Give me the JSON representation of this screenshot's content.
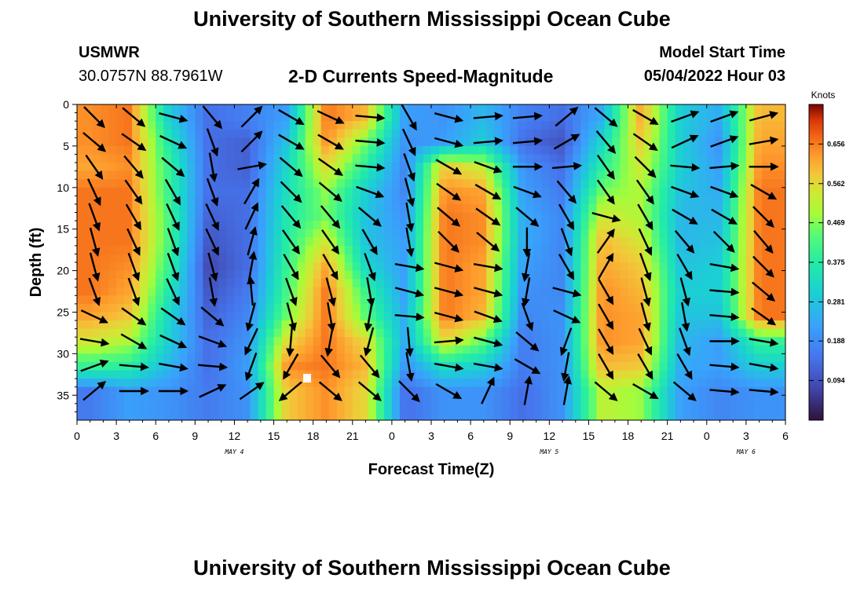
{
  "header": {
    "main_title": "University of Southern Mississippi Ocean Cube",
    "station_code": "USMWR",
    "station_coords": "30.0757N  88.7961W",
    "plot_title": "2-D Currents Speed-Magnitude",
    "model_start_label": "Model Start Time",
    "model_start_value": "05/04/2022 Hour 03",
    "repeat_title": "University of Southern Mississippi Ocean Cube"
  },
  "chart_data": {
    "type": "heatmap",
    "title": "2-D Currents Speed-Magnitude",
    "xlabel": "Forecast Time(Z)",
    "ylabel": "Depth (ft)",
    "x_range_hours_from_may4_00z": [
      0,
      54
    ],
    "y_range_ft": [
      0,
      38
    ],
    "y_inverted": true,
    "x_ticks": [
      "0",
      "3",
      "6",
      "9",
      "12",
      "15",
      "18",
      "21",
      "0",
      "3",
      "6",
      "9",
      "12",
      "15",
      "18",
      "21",
      "0",
      "3",
      "6"
    ],
    "y_ticks": [
      "0",
      "5",
      "10",
      "15",
      "20",
      "25",
      "30",
      "35"
    ],
    "day_labels": [
      {
        "text": "MAY 4",
        "hour": 12
      },
      {
        "text": "MAY 5",
        "hour": 36
      },
      {
        "text": "MAY 6",
        "hour": 51
      }
    ],
    "colorbar": {
      "title": "Knots",
      "range": [
        0.0,
        0.75
      ],
      "ticks": [
        "0.094",
        "0.188",
        "0.281",
        "0.375",
        "0.469",
        "0.562",
        "0.656"
      ]
    },
    "hour_columns": [
      1,
      4,
      7,
      10,
      13,
      16,
      19,
      22,
      25,
      28,
      31,
      34,
      37,
      40,
      43,
      46,
      49,
      52
    ],
    "depth_rows": [
      1.5,
      4.5,
      7.5,
      10.5,
      13.5,
      16.5,
      19.5,
      22.5,
      25.5,
      28.5,
      31.5,
      34.5
    ],
    "speed_knots": [
      [
        0.64,
        0.66,
        0.3,
        0.14,
        0.17,
        0.22,
        0.66,
        0.6,
        0.22,
        0.2,
        0.26,
        0.17,
        0.14,
        0.24,
        0.62,
        0.3,
        0.24,
        0.6
      ],
      [
        0.64,
        0.66,
        0.36,
        0.14,
        0.12,
        0.28,
        0.64,
        0.46,
        0.2,
        0.22,
        0.3,
        0.14,
        0.1,
        0.32,
        0.58,
        0.3,
        0.2,
        0.62
      ],
      [
        0.62,
        0.64,
        0.4,
        0.14,
        0.12,
        0.32,
        0.56,
        0.38,
        0.18,
        0.58,
        0.52,
        0.2,
        0.14,
        0.38,
        0.54,
        0.3,
        0.22,
        0.64
      ],
      [
        0.66,
        0.66,
        0.4,
        0.14,
        0.14,
        0.34,
        0.48,
        0.3,
        0.18,
        0.64,
        0.62,
        0.22,
        0.16,
        0.46,
        0.5,
        0.28,
        0.24,
        0.66
      ],
      [
        0.66,
        0.66,
        0.42,
        0.12,
        0.14,
        0.36,
        0.46,
        0.28,
        0.2,
        0.66,
        0.64,
        0.24,
        0.18,
        0.54,
        0.5,
        0.26,
        0.26,
        0.66
      ],
      [
        0.66,
        0.66,
        0.42,
        0.1,
        0.14,
        0.38,
        0.54,
        0.28,
        0.22,
        0.66,
        0.64,
        0.24,
        0.18,
        0.6,
        0.54,
        0.26,
        0.28,
        0.66
      ],
      [
        0.66,
        0.64,
        0.4,
        0.08,
        0.14,
        0.4,
        0.62,
        0.32,
        0.22,
        0.66,
        0.62,
        0.22,
        0.18,
        0.62,
        0.58,
        0.28,
        0.3,
        0.66
      ],
      [
        0.66,
        0.62,
        0.36,
        0.1,
        0.16,
        0.42,
        0.66,
        0.4,
        0.22,
        0.66,
        0.62,
        0.2,
        0.18,
        0.64,
        0.6,
        0.3,
        0.3,
        0.66
      ],
      [
        0.62,
        0.58,
        0.32,
        0.12,
        0.18,
        0.46,
        0.66,
        0.44,
        0.24,
        0.66,
        0.6,
        0.18,
        0.2,
        0.64,
        0.62,
        0.28,
        0.28,
        0.66
      ],
      [
        0.54,
        0.5,
        0.3,
        0.14,
        0.2,
        0.56,
        0.66,
        0.56,
        0.24,
        0.56,
        0.44,
        0.16,
        0.2,
        0.64,
        0.62,
        0.26,
        0.22,
        0.4
      ],
      [
        0.4,
        0.38,
        0.26,
        0.14,
        0.22,
        0.64,
        0.66,
        0.6,
        0.2,
        0.34,
        0.3,
        0.16,
        0.2,
        0.6,
        0.58,
        0.24,
        0.22,
        0.3
      ],
      [
        0.16,
        0.22,
        0.2,
        0.16,
        0.2,
        0.58,
        0.64,
        0.56,
        0.14,
        0.2,
        0.2,
        0.14,
        0.2,
        0.52,
        0.48,
        0.22,
        0.18,
        0.2
      ]
    ],
    "direction_deg_from_east": [
      [
        -45,
        -40,
        -15,
        -50,
        45,
        -30,
        -25,
        -5,
        -60,
        -15,
        5,
        5,
        40,
        -40,
        -30,
        20,
        20,
        15
      ],
      [
        -40,
        -35,
        -25,
        -70,
        45,
        -30,
        -30,
        -5,
        -65,
        -15,
        5,
        5,
        30,
        -50,
        -35,
        25,
        20,
        10
      ],
      [
        -55,
        -50,
        -40,
        -80,
        10,
        -40,
        -35,
        -5,
        -70,
        -30,
        -20,
        0,
        5,
        -55,
        -45,
        -5,
        5,
        0
      ],
      [
        -65,
        -55,
        -60,
        -70,
        60,
        -45,
        -40,
        -20,
        -75,
        -35,
        -30,
        -20,
        -50,
        -55,
        -55,
        -20,
        -20,
        -30
      ],
      [
        -70,
        -60,
        -65,
        -65,
        65,
        -50,
        -50,
        -40,
        -80,
        -40,
        -35,
        -40,
        -60,
        -15,
        -60,
        -30,
        -30,
        -45
      ],
      [
        -75,
        -65,
        -70,
        -65,
        75,
        -55,
        -55,
        -60,
        -80,
        -45,
        -40,
        -90,
        -70,
        55,
        -65,
        -50,
        -45,
        -50
      ],
      [
        -75,
        -70,
        -70,
        -75,
        80,
        -60,
        -60,
        -70,
        -10,
        -15,
        -10,
        -100,
        -60,
        60,
        -70,
        -60,
        -10,
        -45
      ],
      [
        -70,
        -70,
        -65,
        -80,
        95,
        -70,
        -75,
        -80,
        -15,
        -15,
        -15,
        -100,
        -15,
        -60,
        -75,
        -75,
        -5,
        -40
      ],
      [
        -25,
        -35,
        -35,
        -40,
        -105,
        -75,
        -80,
        -100,
        -5,
        -15,
        -20,
        -70,
        -25,
        -60,
        -75,
        -80,
        -5,
        -35
      ],
      [
        -10,
        -30,
        -25,
        -20,
        -115,
        -95,
        -100,
        -105,
        -85,
        5,
        -15,
        -40,
        -110,
        -60,
        -65,
        -70,
        0,
        -10
      ],
      [
        20,
        -5,
        -10,
        -5,
        -110,
        -120,
        -50,
        -50,
        -80,
        -10,
        -10,
        -30,
        -100,
        -60,
        -60,
        -60,
        -5,
        -10
      ],
      [
        40,
        0,
        0,
        25,
        35,
        -140,
        -40,
        -40,
        -45,
        -30,
        65,
        80,
        80,
        -40,
        -30,
        -40,
        -5,
        -5
      ]
    ]
  }
}
